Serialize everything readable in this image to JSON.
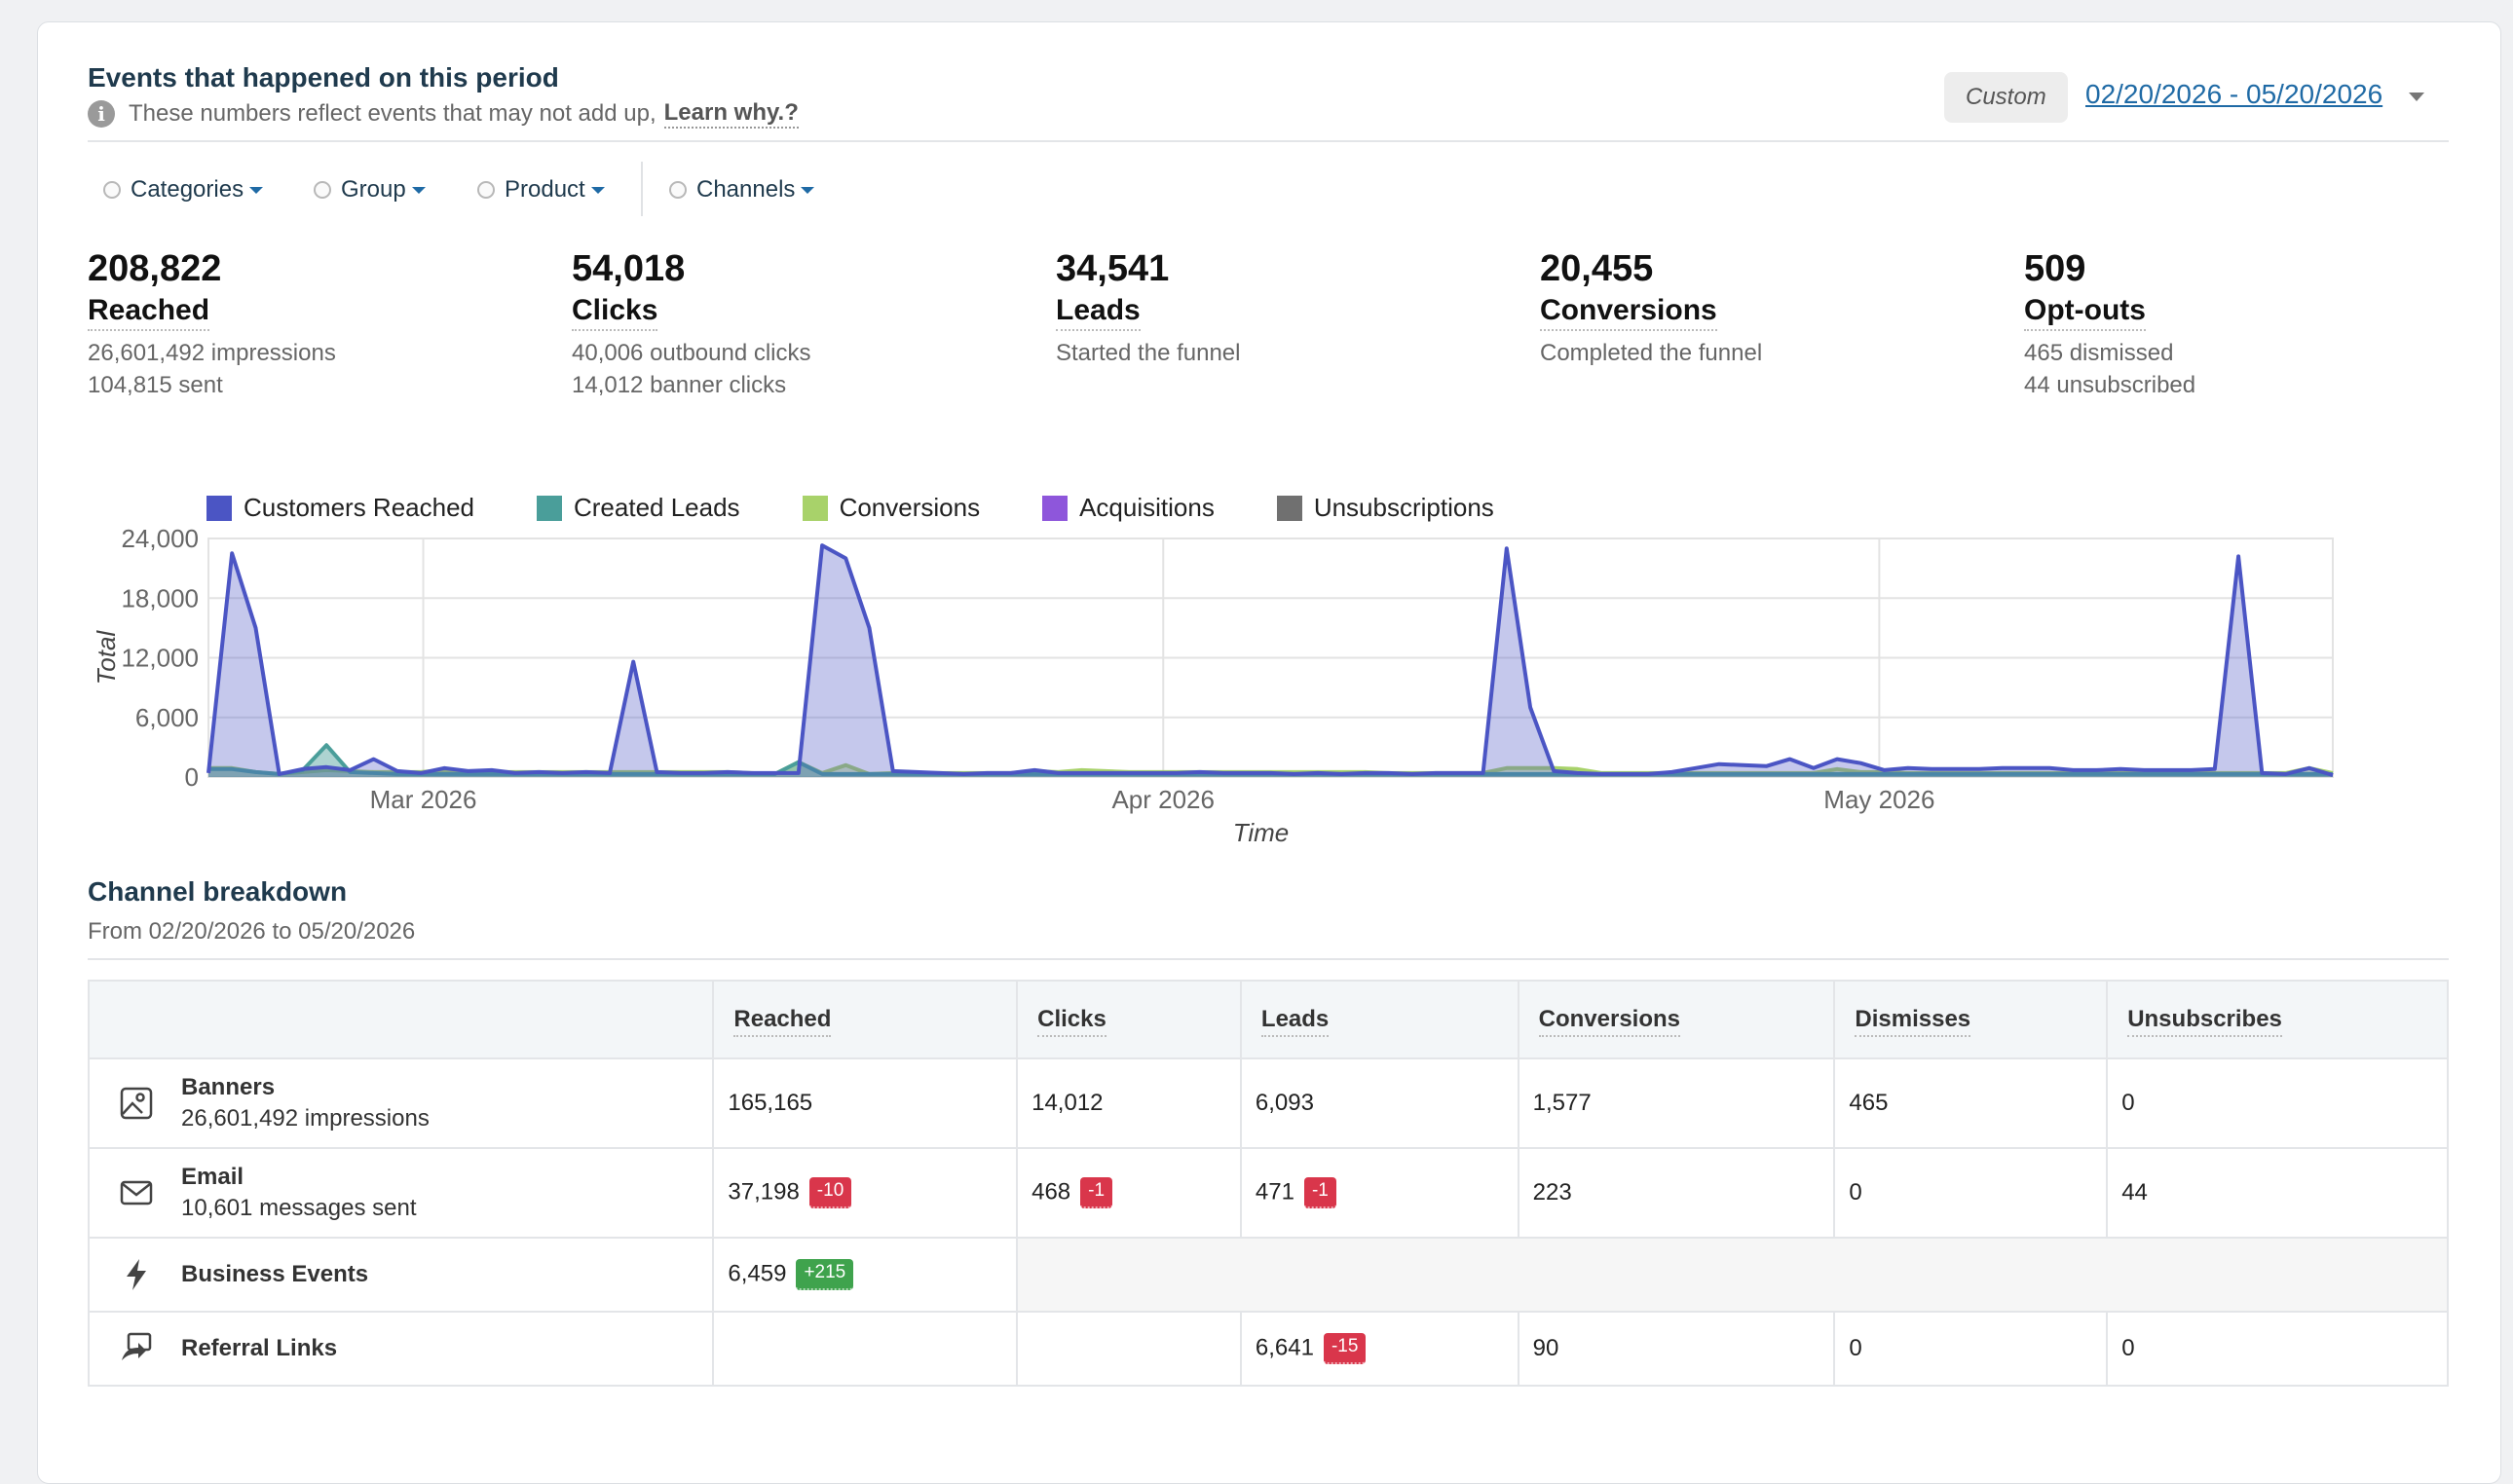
{
  "header": {
    "title": "Events that happened on this period",
    "subtitle": "These numbers reflect events that may not add up,",
    "learn_link": "Learn why.?",
    "custom_label": "Custom",
    "date_range": "02/20/2026 - 05/20/2026"
  },
  "filters": [
    {
      "label": "Categories"
    },
    {
      "label": "Group"
    },
    {
      "label": "Product"
    },
    {
      "label": "Channels"
    }
  ],
  "stats": [
    {
      "value": "208,822",
      "label": "Reached",
      "sub1": "26,601,492 impressions",
      "sub2": "104,815 sent"
    },
    {
      "value": "54,018",
      "label": "Clicks",
      "sub1": "40,006 outbound clicks",
      "sub2": "14,012 banner clicks"
    },
    {
      "value": "34,541",
      "label": "Leads",
      "sub1": "Started the funnel",
      "sub2": ""
    },
    {
      "value": "20,455",
      "label": "Conversions",
      "sub1": "Completed the funnel",
      "sub2": ""
    },
    {
      "value": "509",
      "label": "Opt-outs",
      "sub1": "465 dismissed",
      "sub2": "44 unsubscribed"
    }
  ],
  "chart_data": {
    "type": "area",
    "xlabel": "Time",
    "ylabel": "Total",
    "ylim": [
      0,
      24000
    ],
    "yticks": [
      "24,000",
      "18,000",
      "12,000",
      "6,000",
      "0"
    ],
    "xticks": [
      "Mar 2026",
      "Apr 2026",
      "May 2026"
    ],
    "x_start": "2026-02-20",
    "x_end": "2026-05-20",
    "grid": true,
    "legend_position": "top-left",
    "series": [
      {
        "name": "Customers Reached",
        "color": "#4b55c4",
        "values": [
          400,
          22500,
          15000,
          300,
          800,
          1000,
          700,
          1800,
          600,
          400,
          900,
          600,
          700,
          400,
          500,
          400,
          500,
          400,
          11600,
          500,
          400,
          400,
          500,
          400,
          400,
          400,
          23300,
          22000,
          15000,
          600,
          500,
          400,
          300,
          400,
          400,
          700,
          400,
          400,
          400,
          400,
          400,
          400,
          500,
          400,
          400,
          400,
          300,
          400,
          300,
          400,
          400,
          300,
          400,
          400,
          400,
          23000,
          7000,
          600,
          400,
          300,
          300,
          300,
          500,
          900,
          1300,
          1200,
          1100,
          1800,
          900,
          1800,
          1400,
          700,
          900,
          800,
          800,
          800,
          900,
          900,
          900,
          700,
          700,
          800,
          700,
          700,
          700,
          800,
          22200,
          400,
          300,
          900,
          200
        ]
      },
      {
        "name": "Created Leads",
        "color": "#4a9e9a",
        "values": [
          800,
          800,
          500,
          300,
          700,
          3200,
          500,
          400,
          300,
          300,
          300,
          300,
          300,
          300,
          300,
          300,
          300,
          300,
          300,
          300,
          300,
          300,
          300,
          300,
          300,
          1500,
          300,
          300,
          300,
          300,
          300,
          300,
          300,
          300,
          300,
          300,
          300,
          300,
          300,
          300,
          300,
          300,
          300,
          300,
          300,
          300,
          300,
          300,
          300,
          300,
          300,
          300,
          300,
          300,
          300,
          300,
          300,
          300,
          300,
          300,
          300,
          300,
          300,
          300,
          300,
          300,
          300,
          300,
          300,
          300,
          300,
          300,
          300,
          300,
          300,
          300,
          300,
          300,
          300,
          300,
          300,
          300,
          300,
          300,
          300,
          300,
          300,
          300,
          300,
          300,
          300
        ]
      },
      {
        "name": "Conversions",
        "color": "#a8d26a",
        "values": [
          900,
          900,
          500,
          300,
          500,
          700,
          600,
          500,
          500,
          500,
          700,
          500,
          500,
          500,
          500,
          500,
          500,
          500,
          500,
          500,
          500,
          500,
          500,
          400,
          300,
          1500,
          400,
          1200,
          300,
          400,
          400,
          400,
          400,
          400,
          400,
          600,
          500,
          700,
          600,
          500,
          500,
          500,
          500,
          500,
          500,
          500,
          500,
          500,
          500,
          500,
          400,
          400,
          400,
          400,
          400,
          900,
          900,
          900,
          800,
          400,
          400,
          400,
          400,
          400,
          400,
          400,
          400,
          400,
          400,
          800,
          500,
          500,
          400,
          400,
          400,
          400,
          400,
          400,
          400,
          400,
          400,
          400,
          400,
          400,
          400,
          400,
          400,
          400,
          400,
          900,
          400
        ]
      },
      {
        "name": "Acquisitions",
        "color": "#8e56db",
        "values": []
      },
      {
        "name": "Unsubscriptions",
        "color": "#707070",
        "values": []
      }
    ]
  },
  "breakdown": {
    "title": "Channel breakdown",
    "subtitle": "From 02/20/2026 to 05/20/2026",
    "columns": [
      "Reached",
      "Clicks",
      "Leads",
      "Conversions",
      "Dismisses",
      "Unsubscribes"
    ],
    "rows": [
      {
        "name": "Banners",
        "sub": "26,601,492 impressions",
        "icon": "image-icon",
        "reached": "165,165",
        "clicks": "14,012",
        "leads": "6,093",
        "conversions": "1,577",
        "dismisses": "465",
        "unsubscribes": "0"
      },
      {
        "name": "Email",
        "sub": "10,601 messages sent",
        "icon": "envelope-icon",
        "reached": "37,198",
        "reached_badge": "-10",
        "clicks": "468",
        "clicks_badge": "-1",
        "leads": "471",
        "leads_badge": "-1",
        "conversions": "223",
        "dismisses": "0",
        "unsubscribes": "44"
      },
      {
        "name": "Business Events",
        "icon": "lightning-icon",
        "reached": "6,459",
        "reached_badge": "+215"
      },
      {
        "name": "Referral Links",
        "icon": "share-link-icon",
        "leads": "6,641",
        "leads_badge": "-15",
        "conversions": "90",
        "dismisses": "0",
        "unsubscribes": "0"
      }
    ]
  }
}
